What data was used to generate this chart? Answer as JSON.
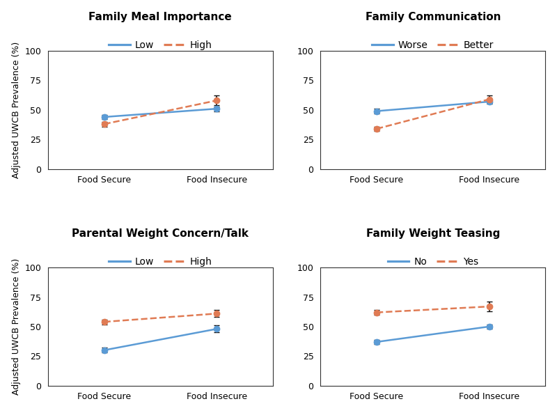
{
  "panels": [
    {
      "title": "Family Meal Importance",
      "legend_labels": [
        "Low",
        "High"
      ],
      "x_labels": [
        "Food Secure",
        "Food Insecure"
      ],
      "line1": {
        "values": [
          44,
          51
        ],
        "yerr": [
          2,
          2
        ],
        "color": "#5B9BD5",
        "style": "solid"
      },
      "line2": {
        "values": [
          38,
          58
        ],
        "yerr": [
          2,
          4
        ],
        "color": "#E07B54",
        "style": "dashed"
      }
    },
    {
      "title": "Family Communication",
      "legend_labels": [
        "Worse",
        "Better"
      ],
      "x_labels": [
        "Food Secure",
        "Food Insecure"
      ],
      "line1": {
        "values": [
          49,
          57
        ],
        "yerr": [
          2,
          2
        ],
        "color": "#5B9BD5",
        "style": "solid"
      },
      "line2": {
        "values": [
          34,
          59
        ],
        "yerr": [
          2,
          3
        ],
        "color": "#E07B54",
        "style": "dashed"
      }
    },
    {
      "title": "Parental Weight Concern/Talk",
      "legend_labels": [
        "Low",
        "High"
      ],
      "x_labels": [
        "Food Secure",
        "Food Insecure"
      ],
      "line1": {
        "values": [
          30,
          48
        ],
        "yerr": [
          2,
          3
        ],
        "color": "#5B9BD5",
        "style": "solid"
      },
      "line2": {
        "values": [
          54,
          61
        ],
        "yerr": [
          2,
          3
        ],
        "color": "#E07B54",
        "style": "dashed"
      }
    },
    {
      "title": "Family Weight Teasing",
      "legend_labels": [
        "No",
        "Yes"
      ],
      "x_labels": [
        "Food Secure",
        "Food Insecure"
      ],
      "line1": {
        "values": [
          37,
          50
        ],
        "yerr": [
          2,
          2
        ],
        "color": "#5B9BD5",
        "style": "solid"
      },
      "line2": {
        "values": [
          62,
          67
        ],
        "yerr": [
          2,
          4
        ],
        "color": "#E07B54",
        "style": "dashed"
      }
    }
  ],
  "ylabel": "Adjusted UWCB Prevalence (%)",
  "ylim": [
    0,
    100
  ],
  "yticks": [
    0,
    25,
    50,
    75,
    100
  ],
  "background_color": "#ffffff",
  "title_fontsize": 11,
  "tick_fontsize": 9,
  "ylabel_fontsize": 9,
  "legend_fontsize": 10,
  "marker": "o",
  "markersize": 6,
  "linewidth": 1.8,
  "errorbar_color": "#111111",
  "errorbar_capsize": 3,
  "errorbar_linewidth": 1.2
}
